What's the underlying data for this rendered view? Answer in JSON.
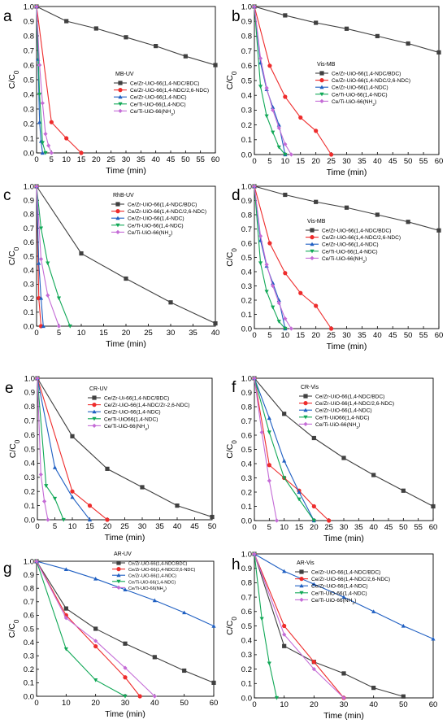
{
  "colors": {
    "s1": "#404040",
    "s2": "#ee2c2c",
    "s3": "#1f5fc2",
    "s4": "#11a857",
    "s5": "#c46bd6"
  },
  "chart_data": [
    {
      "id": "a",
      "type": "line",
      "panel_label": "a",
      "title": "MB-UV",
      "xlabel": "Time (min)",
      "ylabel": "C/C0",
      "xlim": [
        0,
        60
      ],
      "ylim": [
        0,
        1.0
      ],
      "xticks": [
        0,
        5,
        10,
        15,
        20,
        25,
        30,
        35,
        40,
        45,
        50,
        55,
        60
      ],
      "yticks": [
        0.0,
        0.1,
        0.2,
        0.3,
        0.4,
        0.5,
        0.6,
        0.7,
        0.8,
        0.9,
        1.0
      ],
      "legend_position": "center",
      "series": [
        {
          "name": "Ce/Zr-UiO-66(1,4-NDC/BDC)",
          "color": "s1",
          "marker": "square",
          "x": [
            0,
            10,
            20,
            30,
            40,
            50,
            60
          ],
          "y": [
            1.0,
            0.9,
            0.85,
            0.79,
            0.73,
            0.66,
            0.6
          ]
        },
        {
          "name": "Ce/Zr-UiO-66(1,4-NDC/2,6-NDC)",
          "color": "s2",
          "marker": "circle",
          "x": [
            0,
            5,
            10,
            15
          ],
          "y": [
            1.0,
            0.21,
            0.1,
            0.0
          ]
        },
        {
          "name": "Ce/Zr-UiO-66(1,4-NDC)",
          "color": "s3",
          "marker": "triangle-up",
          "x": [
            0,
            0.5,
            1,
            1.5,
            2
          ],
          "y": [
            1.0,
            0.64,
            0.21,
            0.08,
            0.0
          ]
        },
        {
          "name": "Ce/Ti-UiO-66(1,4-NDC)",
          "color": "s4",
          "marker": "triangle-down",
          "x": [
            0,
            1,
            2,
            3
          ],
          "y": [
            1.0,
            0.4,
            0.07,
            0.0
          ]
        },
        {
          "name": "Ce/Ti-UiO-66(NH2)",
          "color": "s5",
          "marker": "diamond",
          "x": [
            0,
            1,
            2,
            3,
            4,
            5
          ],
          "y": [
            1.0,
            0.6,
            0.34,
            0.13,
            0.05,
            0.0
          ]
        }
      ]
    },
    {
      "id": "b",
      "type": "line",
      "panel_label": "b",
      "title": "Vis-MB",
      "xlabel": "Time (min)",
      "ylabel": "C/C0",
      "xlim": [
        0,
        60
      ],
      "ylim": [
        0,
        1.0
      ],
      "xticks": [
        0,
        5,
        10,
        15,
        20,
        25,
        30,
        35,
        40,
        45,
        50,
        55,
        60
      ],
      "yticks": [
        0.0,
        0.1,
        0.2,
        0.3,
        0.4,
        0.5,
        0.6,
        0.7,
        0.8,
        0.9,
        1.0
      ],
      "legend_position": "center-right",
      "series": [
        {
          "name": "Ce/Zr-UiO-66(1,4-NDC/BDC)",
          "color": "s1",
          "marker": "square",
          "x": [
            0,
            10,
            20,
            30,
            40,
            50,
            60
          ],
          "y": [
            1.0,
            0.94,
            0.89,
            0.85,
            0.8,
            0.75,
            0.69
          ]
        },
        {
          "name": "Ce/Zr-UiO-66(1,4-NDC/2,6-NDC)",
          "color": "s2",
          "marker": "circle",
          "x": [
            0,
            5,
            10,
            15,
            20,
            25
          ],
          "y": [
            1.0,
            0.6,
            0.39,
            0.25,
            0.16,
            0.0
          ]
        },
        {
          "name": "Ce/Zr-UiO-66(1,4-NDC)",
          "color": "s3",
          "marker": "triangle-up",
          "x": [
            0,
            2,
            4,
            6,
            8,
            10
          ],
          "y": [
            1.0,
            0.62,
            0.44,
            0.32,
            0.2,
            0.0
          ]
        },
        {
          "name": "Ce/Ti-UiO-66(1,4-NDC)",
          "color": "s4",
          "marker": "triangle-down",
          "x": [
            0,
            2,
            4,
            6,
            8,
            10
          ],
          "y": [
            1.0,
            0.46,
            0.26,
            0.15,
            0.05,
            0.0
          ]
        },
        {
          "name": "Ce/Ti-UiO-66(NH2)",
          "color": "s5",
          "marker": "diamond",
          "x": [
            0,
            2,
            4,
            6,
            8,
            10,
            12
          ],
          "y": [
            1.0,
            0.65,
            0.45,
            0.3,
            0.18,
            0.07,
            0.0
          ]
        }
      ]
    },
    {
      "id": "c",
      "type": "line",
      "panel_label": "c",
      "title": "RhB-UV",
      "xlabel": "Time (min)",
      "ylabel": "C/C0",
      "xlim": [
        0,
        40
      ],
      "ylim": [
        0,
        1.0
      ],
      "xticks": [
        0,
        5,
        10,
        15,
        20,
        25,
        30,
        35,
        40
      ],
      "yticks": [
        0.0,
        0.1,
        0.2,
        0.3,
        0.4,
        0.5,
        0.6,
        0.7,
        0.8,
        0.9,
        1.0
      ],
      "legend_position": "top-right",
      "series": [
        {
          "name": "Ce/Zr-UiO-66(1,4-NDC/BDC)",
          "color": "s1",
          "marker": "square",
          "x": [
            0,
            10,
            20,
            30,
            40
          ],
          "y": [
            1.0,
            0.52,
            0.34,
            0.17,
            0.02
          ]
        },
        {
          "name": "Ce/Zr-UiO-66(1,4-NDC/2,6-NDC)",
          "color": "s2",
          "marker": "circle",
          "x": [
            0,
            0.5,
            1
          ],
          "y": [
            1.0,
            0.2,
            0.0
          ]
        },
        {
          "name": "Ce/Zr-UiO-66(1,4-NDC)",
          "color": "s3",
          "marker": "triangle-up",
          "x": [
            0,
            0.5,
            1,
            1.5
          ],
          "y": [
            1.0,
            0.45,
            0.2,
            0.0
          ]
        },
        {
          "name": "Ce/Ti-UiO-66(1,4-NDC)",
          "color": "s4",
          "marker": "triangle-down",
          "x": [
            0,
            1,
            2.5,
            5,
            7.5
          ],
          "y": [
            1.0,
            0.7,
            0.45,
            0.2,
            0.0
          ]
        },
        {
          "name": "Ce/Ti-UiO-66(NH2)",
          "color": "s5",
          "marker": "diamond",
          "x": [
            0,
            1,
            2.5,
            5
          ],
          "y": [
            1.0,
            0.48,
            0.22,
            0.0
          ]
        }
      ]
    },
    {
      "id": "d",
      "type": "line",
      "panel_label": "d",
      "title": "Vis-MB",
      "xlabel": "Time (min)",
      "ylabel": "C/C0",
      "xlim": [
        0,
        60
      ],
      "ylim": [
        0,
        1.0
      ],
      "xticks": [
        0,
        5,
        10,
        15,
        20,
        25,
        30,
        35,
        40,
        45,
        50,
        55,
        60
      ],
      "yticks": [
        0.0,
        0.1,
        0.2,
        0.3,
        0.4,
        0.5,
        0.6,
        0.7,
        0.8,
        0.9,
        1.0
      ],
      "legend_position": "center-right",
      "series": [
        {
          "name": "Ce/Zr-UiO-66(1,4-NDC/BDC)",
          "color": "s1",
          "marker": "square",
          "x": [
            0,
            10,
            20,
            30,
            40,
            50,
            60
          ],
          "y": [
            1.0,
            0.94,
            0.89,
            0.85,
            0.8,
            0.75,
            0.69
          ]
        },
        {
          "name": "Ce/Zr-UiO-66(1,4-NDC/2,6-NDC)",
          "color": "s2",
          "marker": "circle",
          "x": [
            0,
            5,
            10,
            15,
            20,
            25
          ],
          "y": [
            1.0,
            0.6,
            0.39,
            0.25,
            0.16,
            0.0
          ]
        },
        {
          "name": "Ce/Zr-UiO-66(1,4-NDC)",
          "color": "s3",
          "marker": "triangle-up",
          "x": [
            0,
            2,
            4,
            6,
            8,
            10
          ],
          "y": [
            1.0,
            0.62,
            0.44,
            0.32,
            0.2,
            0.0
          ]
        },
        {
          "name": "Ce/Ti-UiO-66(1,4-NDC)",
          "color": "s4",
          "marker": "triangle-down",
          "x": [
            0,
            2,
            4,
            6,
            8,
            10
          ],
          "y": [
            1.0,
            0.46,
            0.26,
            0.15,
            0.05,
            0.0
          ]
        },
        {
          "name": "Ce/Ti-UiO-66(NH2)",
          "color": "s5",
          "marker": "diamond",
          "x": [
            0,
            2,
            4,
            6,
            8,
            10,
            12
          ],
          "y": [
            1.0,
            0.65,
            0.45,
            0.3,
            0.18,
            0.07,
            0.0
          ]
        }
      ]
    },
    {
      "id": "e",
      "type": "line",
      "panel_label": "e",
      "title": "CR-UV",
      "xlabel": "Time (min)",
      "ylabel": "C/C0",
      "xlim": [
        0,
        50
      ],
      "ylim": [
        0,
        1.0
      ],
      "xticks": [
        0,
        5,
        10,
        15,
        20,
        25,
        30,
        35,
        40,
        45,
        50
      ],
      "yticks": [
        0.0,
        0.1,
        0.2,
        0.3,
        0.4,
        0.5,
        0.6,
        0.7,
        0.8,
        0.9,
        1.0
      ],
      "legend_position": "top-right",
      "series": [
        {
          "name": "Ce/Zr-Ui-66(1,4-NDC/BDC)",
          "color": "s1",
          "marker": "square",
          "x": [
            0,
            10,
            20,
            30,
            40,
            50
          ],
          "y": [
            1.0,
            0.59,
            0.36,
            0.23,
            0.1,
            0.02
          ]
        },
        {
          "name": "Ce/Zr-UiO-66(1,4-NDC/Zr-2,6-NDC)",
          "color": "s2",
          "marker": "circle",
          "x": [
            0,
            10,
            15,
            20
          ],
          "y": [
            1.0,
            0.2,
            0.1,
            0.0
          ]
        },
        {
          "name": "Ce/Zr-UiO-66(1,4-NDC)",
          "color": "s3",
          "marker": "triangle-up",
          "x": [
            0,
            5,
            10,
            15
          ],
          "y": [
            1.0,
            0.37,
            0.16,
            0.0
          ]
        },
        {
          "name": "Ce/Ti-UiO66(1,4-NDC)",
          "color": "s4",
          "marker": "triangle-down",
          "x": [
            0,
            2.5,
            5,
            7.5
          ],
          "y": [
            1.0,
            0.24,
            0.15,
            0.0
          ]
        },
        {
          "name": "Ce/Ti-UiO-66(NH2)",
          "color": "s5",
          "marker": "diamond",
          "x": [
            0,
            1,
            2,
            3
          ],
          "y": [
            1.0,
            0.32,
            0.13,
            0.0
          ]
        }
      ]
    },
    {
      "id": "f",
      "type": "line",
      "panel_label": "f",
      "title": "CR-Vis",
      "xlabel": "Time (min)",
      "ylabel": "C/C0",
      "xlim": [
        0,
        60
      ],
      "ylim": [
        0,
        1.0
      ],
      "xticks": [
        0,
        5,
        10,
        15,
        20,
        25,
        30,
        35,
        40,
        45,
        50,
        55,
        60
      ],
      "yticks": [
        0.0,
        0.1,
        0.2,
        0.3,
        0.4,
        0.5,
        0.6,
        0.7,
        0.8,
        0.9,
        1.0
      ],
      "legend_position": "top-right",
      "series": [
        {
          "name": "Ce/Zr-UiO-66(1,4-NDC/BDC)",
          "color": "s1",
          "marker": "square",
          "x": [
            0,
            10,
            20,
            30,
            40,
            50,
            60
          ],
          "y": [
            1.0,
            0.75,
            0.58,
            0.44,
            0.32,
            0.21,
            0.1
          ]
        },
        {
          "name": "Ce/Zr-UiO-66(1,4-NDC/2,6-NDC)",
          "color": "s2",
          "marker": "circle",
          "x": [
            0,
            5,
            10,
            15,
            20,
            25
          ],
          "y": [
            1.0,
            0.39,
            0.3,
            0.21,
            0.1,
            0.0
          ]
        },
        {
          "name": "Ce/Zr-UiO-66(1,4-NDC)",
          "color": "s3",
          "marker": "triangle-up",
          "x": [
            0,
            5,
            10,
            15,
            20
          ],
          "y": [
            1.0,
            0.72,
            0.42,
            0.2,
            0.0
          ]
        },
        {
          "name": "Ce/Ti-UiO66(1,4-NDC)",
          "color": "s4",
          "marker": "triangle-down",
          "x": [
            0,
            5,
            10,
            15,
            20
          ],
          "y": [
            1.0,
            0.62,
            0.3,
            0.15,
            0.0
          ]
        },
        {
          "name": "Ce/Ti-UiO-66(NH2)",
          "color": "s5",
          "marker": "diamond",
          "x": [
            0,
            2.5,
            5,
            7.5
          ],
          "y": [
            1.0,
            0.62,
            0.28,
            0.0
          ]
        }
      ]
    },
    {
      "id": "g",
      "type": "line",
      "panel_label": "g",
      "title": "AR-UV",
      "xlabel": "Time (min)",
      "ylabel": "C/C0",
      "xlim": [
        0,
        60
      ],
      "ylim": [
        0,
        1.0
      ],
      "xticks": [
        0,
        10,
        20,
        30,
        40,
        50,
        60
      ],
      "yticks": [
        0.0,
        0.1,
        0.2,
        0.3,
        0.4,
        0.5,
        0.6,
        0.7,
        0.8,
        0.9,
        1.0
      ],
      "legend_position": "top-right",
      "series": [
        {
          "name": "Ce/Zr-UiO-66(1,4-NDC/BDC)",
          "color": "s1",
          "marker": "square",
          "x": [
            0,
            10,
            20,
            30,
            40,
            50,
            60
          ],
          "y": [
            1.0,
            0.65,
            0.5,
            0.39,
            0.29,
            0.19,
            0.1
          ]
        },
        {
          "name": "Ce/Zr-UiO-66(1,4-NDC/2,6-NDC)",
          "color": "s2",
          "marker": "circle",
          "x": [
            0,
            10,
            20,
            30,
            35
          ],
          "y": [
            1.0,
            0.6,
            0.37,
            0.14,
            0.0
          ]
        },
        {
          "name": "Ce/Zr-UiO-66(1,4-NDC)",
          "color": "s3",
          "marker": "triangle-up",
          "x": [
            0,
            10,
            20,
            30,
            40,
            50,
            60
          ],
          "y": [
            1.0,
            0.94,
            0.87,
            0.79,
            0.71,
            0.62,
            0.52
          ]
        },
        {
          "name": "Ce/Ti-UiO-66(1,4-NDC)",
          "color": "s4",
          "marker": "triangle-down",
          "x": [
            0,
            10,
            20,
            30
          ],
          "y": [
            1.0,
            0.35,
            0.12,
            0.0
          ]
        },
        {
          "name": "Ce/Ti-UiO-66(NH2)",
          "color": "s5",
          "marker": "diamond",
          "x": [
            0,
            10,
            20,
            30,
            40
          ],
          "y": [
            1.0,
            0.58,
            0.41,
            0.21,
            0.0
          ]
        }
      ]
    },
    {
      "id": "h",
      "type": "line",
      "panel_label": "h",
      "title": "AR-Vis",
      "xlabel": "Time (min)",
      "ylabel": "C/C0",
      "xlim": [
        0,
        60
      ],
      "ylim": [
        0,
        1.0
      ],
      "xticks": [
        0,
        10,
        20,
        30,
        40,
        50,
        60
      ],
      "yticks": [
        0.0,
        0.1,
        0.2,
        0.3,
        0.4,
        0.5,
        0.6,
        0.7,
        0.8,
        0.9,
        1.0
      ],
      "legend_position": "top-right",
      "series": [
        {
          "name": "Ce/Zr-UiO-66(1,4-NDC/BDC)",
          "color": "s1",
          "marker": "square",
          "x": [
            0,
            10,
            20,
            30,
            40,
            50
          ],
          "y": [
            1.0,
            0.36,
            0.25,
            0.17,
            0.07,
            0.01
          ]
        },
        {
          "name": "Ce/Zr-UiO-66(1,4-NDC/2,6-NDC)",
          "color": "s2",
          "marker": "circle",
          "x": [
            0,
            10,
            20,
            30
          ],
          "y": [
            1.0,
            0.5,
            0.25,
            0.0
          ]
        },
        {
          "name": "Ce/Zr-UiO-66(1,4-NDC)",
          "color": "s3",
          "marker": "triangle-up",
          "x": [
            0,
            10,
            20,
            30,
            40,
            50,
            60
          ],
          "y": [
            1.0,
            0.88,
            0.79,
            0.7,
            0.6,
            0.5,
            0.41
          ]
        },
        {
          "name": "Ce/Ti-UiO-66(1,4-NDC)",
          "color": "s4",
          "marker": "triangle-down",
          "x": [
            0,
            2.5,
            5,
            7.5
          ],
          "y": [
            1.0,
            0.55,
            0.24,
            0.0
          ]
        },
        {
          "name": "Ce/Ti-UiO-66(NH2)",
          "color": "s5",
          "marker": "diamond",
          "x": [
            0,
            10,
            20,
            30
          ],
          "y": [
            1.0,
            0.44,
            0.2,
            0.0
          ]
        }
      ]
    }
  ]
}
